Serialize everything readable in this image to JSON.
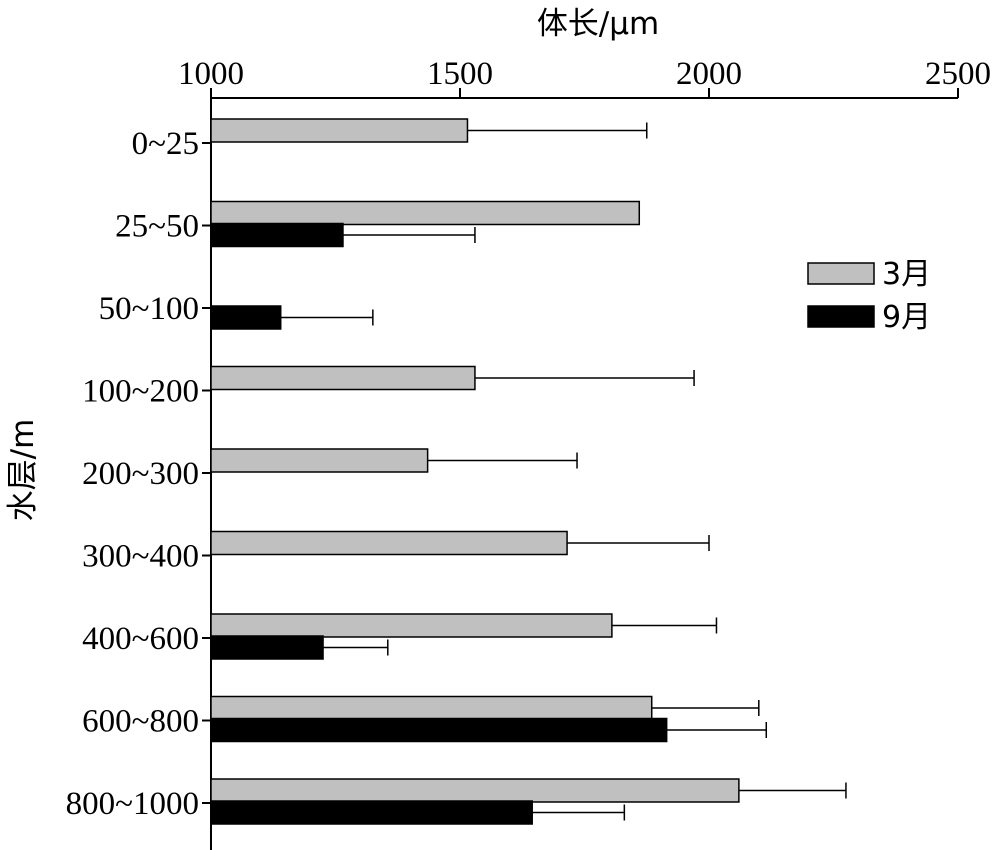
{
  "chart_data": {
    "type": "bar",
    "orientation": "horizontal",
    "title": "",
    "xlabel": "体长/μm",
    "ylabel": "水层/m",
    "xlim": [
      1000,
      2500
    ],
    "x_ticks": [
      1000,
      1500,
      2000,
      2500
    ],
    "x_axis_position": "top",
    "grid": false,
    "legend_position": "right",
    "categories": [
      "0~25",
      "25~50",
      "50~100",
      "100~200",
      "200~300",
      "300~400",
      "400~600",
      "600~800",
      "800~1000"
    ],
    "series": [
      {
        "name": "3月",
        "color": "#c0c0c0",
        "values": [
          1515,
          1860,
          null,
          1530,
          1435,
          1715,
          1805,
          1885,
          2060
        ],
        "error": [
          360,
          null,
          null,
          440,
          300,
          285,
          210,
          215,
          215
        ]
      },
      {
        "name": "9月",
        "color": "#000000",
        "values": [
          null,
          1265,
          1140,
          null,
          null,
          null,
          1225,
          1915,
          1645
        ],
        "error": [
          null,
          265,
          185,
          null,
          null,
          null,
          130,
          200,
          185
        ]
      }
    ]
  }
}
